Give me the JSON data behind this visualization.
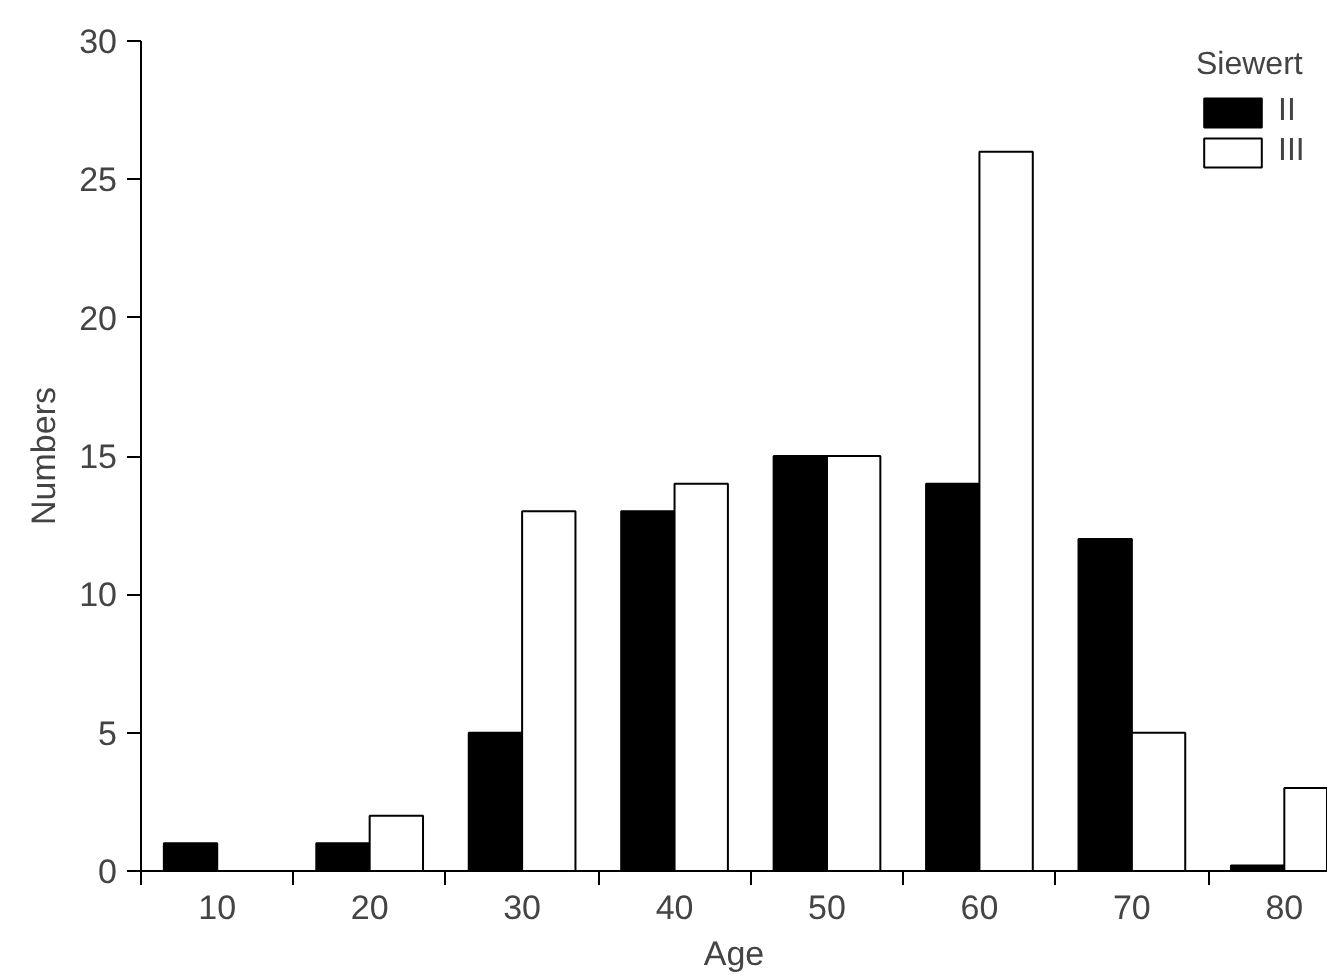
{
  "chart_data": {
    "type": "bar",
    "xlabel": "Age",
    "ylabel": "Numbers",
    "legend_title": "Siewert",
    "categories": [
      "10",
      "20",
      "30",
      "40",
      "50",
      "60",
      "70",
      "80"
    ],
    "series": [
      {
        "name": "II",
        "color": "#000000",
        "values": [
          1,
          1,
          5,
          13,
          15,
          14,
          12,
          0.2
        ]
      },
      {
        "name": "III",
        "color": "#ffffff",
        "values": [
          null,
          2,
          13,
          14,
          15,
          26,
          5,
          3
        ]
      }
    ],
    "ylim": [
      0,
      30
    ],
    "yticks": [
      0,
      5,
      10,
      15,
      20,
      25,
      30
    ],
    "grid": false,
    "legend": "top right"
  }
}
